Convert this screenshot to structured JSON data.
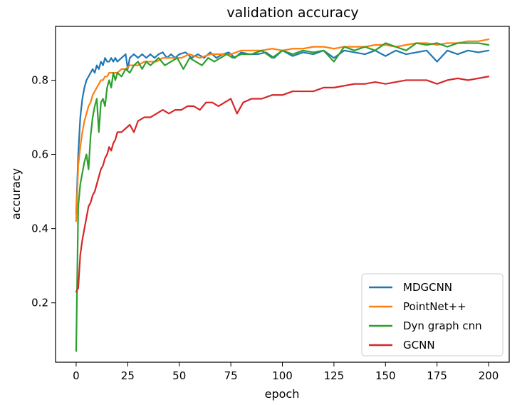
{
  "chart_data": {
    "type": "line",
    "title": "validation accuracy",
    "xlabel": "epoch",
    "ylabel": "accuracy",
    "xlim": [
      -10,
      210
    ],
    "ylim": [
      0.04,
      0.945
    ],
    "xticks": [
      "0",
      "25",
      "50",
      "75",
      "100",
      "125",
      "150",
      "175",
      "200"
    ],
    "yticks": [
      "0.2",
      "0.4",
      "0.6",
      "0.8"
    ],
    "grid": false,
    "legend_position": "lower-right",
    "series": [
      {
        "name": "MDGCNN",
        "color": "#1f77b4",
        "x": [
          0,
          1,
          2,
          3,
          4,
          5,
          6,
          7,
          8,
          9,
          10,
          11,
          12,
          13,
          14,
          15,
          16,
          17,
          18,
          19,
          20,
          22,
          24,
          25,
          26,
          28,
          30,
          32,
          34,
          36,
          38,
          40,
          42,
          44,
          46,
          48,
          50,
          53,
          56,
          59,
          62,
          65,
          68,
          71,
          74,
          77,
          80,
          84,
          88,
          92,
          96,
          100,
          105,
          110,
          115,
          120,
          125,
          130,
          135,
          140,
          145,
          150,
          155,
          160,
          165,
          170,
          175,
          180,
          185,
          190,
          195,
          200
        ],
        "values": [
          0.44,
          0.6,
          0.7,
          0.75,
          0.78,
          0.8,
          0.81,
          0.82,
          0.83,
          0.82,
          0.84,
          0.83,
          0.85,
          0.84,
          0.86,
          0.85,
          0.85,
          0.86,
          0.85,
          0.86,
          0.85,
          0.86,
          0.87,
          0.83,
          0.86,
          0.87,
          0.86,
          0.87,
          0.86,
          0.87,
          0.86,
          0.87,
          0.875,
          0.86,
          0.87,
          0.86,
          0.87,
          0.875,
          0.86,
          0.87,
          0.86,
          0.875,
          0.86,
          0.87,
          0.875,
          0.86,
          0.875,
          0.87,
          0.87,
          0.875,
          0.86,
          0.88,
          0.865,
          0.875,
          0.87,
          0.88,
          0.86,
          0.88,
          0.875,
          0.87,
          0.88,
          0.865,
          0.88,
          0.87,
          0.875,
          0.88,
          0.85,
          0.88,
          0.87,
          0.88,
          0.875,
          0.88
        ]
      },
      {
        "name": "PointNet++",
        "color": "#ff7f0e",
        "x": [
          0,
          1,
          2,
          3,
          4,
          5,
          6,
          7,
          8,
          9,
          10,
          11,
          12,
          13,
          14,
          15,
          16,
          18,
          20,
          22,
          24,
          26,
          28,
          30,
          33,
          36,
          39,
          42,
          45,
          48,
          51,
          55,
          60,
          65,
          70,
          75,
          80,
          85,
          90,
          95,
          100,
          105,
          110,
          115,
          120,
          125,
          130,
          135,
          140,
          145,
          150,
          155,
          160,
          165,
          170,
          175,
          180,
          185,
          190,
          195,
          200
        ],
        "values": [
          0.42,
          0.57,
          0.62,
          0.66,
          0.69,
          0.71,
          0.73,
          0.74,
          0.76,
          0.77,
          0.78,
          0.79,
          0.8,
          0.8,
          0.81,
          0.81,
          0.82,
          0.82,
          0.82,
          0.83,
          0.83,
          0.84,
          0.84,
          0.84,
          0.85,
          0.85,
          0.85,
          0.86,
          0.86,
          0.86,
          0.86,
          0.87,
          0.86,
          0.87,
          0.87,
          0.87,
          0.88,
          0.88,
          0.88,
          0.885,
          0.88,
          0.885,
          0.885,
          0.89,
          0.89,
          0.885,
          0.89,
          0.89,
          0.89,
          0.895,
          0.895,
          0.89,
          0.895,
          0.9,
          0.9,
          0.895,
          0.9,
          0.9,
          0.905,
          0.905,
          0.91
        ]
      },
      {
        "name": "Dyn graph cnn",
        "color": "#2ca02c",
        "x": [
          0,
          1,
          2,
          3,
          4,
          5,
          6,
          7,
          8,
          9,
          10,
          11,
          12,
          13,
          14,
          15,
          16,
          17,
          18,
          19,
          20,
          22,
          24,
          26,
          28,
          30,
          32,
          34,
          36,
          38,
          40,
          43,
          46,
          49,
          52,
          55,
          58,
          61,
          64,
          67,
          70,
          73,
          76,
          80,
          85,
          90,
          95,
          100,
          105,
          110,
          115,
          120,
          125,
          130,
          135,
          140,
          145,
          150,
          155,
          160,
          165,
          170,
          175,
          180,
          185,
          190,
          195,
          200
        ],
        "values": [
          0.07,
          0.46,
          0.52,
          0.55,
          0.58,
          0.6,
          0.56,
          0.65,
          0.7,
          0.73,
          0.75,
          0.66,
          0.74,
          0.75,
          0.73,
          0.78,
          0.8,
          0.78,
          0.82,
          0.8,
          0.82,
          0.81,
          0.83,
          0.82,
          0.84,
          0.85,
          0.83,
          0.85,
          0.84,
          0.85,
          0.86,
          0.84,
          0.85,
          0.86,
          0.83,
          0.86,
          0.85,
          0.84,
          0.86,
          0.85,
          0.86,
          0.87,
          0.86,
          0.87,
          0.87,
          0.88,
          0.86,
          0.88,
          0.87,
          0.88,
          0.875,
          0.88,
          0.85,
          0.89,
          0.88,
          0.89,
          0.88,
          0.9,
          0.89,
          0.88,
          0.9,
          0.895,
          0.9,
          0.89,
          0.9,
          0.9,
          0.9,
          0.895
        ]
      },
      {
        "name": "GCNN",
        "color": "#d62728",
        "x": [
          0,
          1,
          2,
          3,
          4,
          5,
          6,
          7,
          8,
          9,
          10,
          11,
          12,
          13,
          14,
          15,
          16,
          17,
          18,
          19,
          20,
          22,
          24,
          26,
          28,
          30,
          33,
          36,
          39,
          42,
          45,
          48,
          51,
          54,
          57,
          60,
          63,
          66,
          69,
          72,
          75,
          78,
          81,
          85,
          90,
          95,
          100,
          105,
          110,
          115,
          120,
          125,
          130,
          135,
          140,
          145,
          150,
          155,
          160,
          165,
          170,
          175,
          180,
          185,
          190,
          195,
          200
        ],
        "values": [
          0.23,
          0.24,
          0.33,
          0.37,
          0.4,
          0.43,
          0.46,
          0.47,
          0.49,
          0.5,
          0.52,
          0.54,
          0.56,
          0.57,
          0.59,
          0.6,
          0.62,
          0.61,
          0.63,
          0.64,
          0.66,
          0.66,
          0.67,
          0.68,
          0.66,
          0.69,
          0.7,
          0.7,
          0.71,
          0.72,
          0.71,
          0.72,
          0.72,
          0.73,
          0.73,
          0.72,
          0.74,
          0.74,
          0.73,
          0.74,
          0.75,
          0.71,
          0.74,
          0.75,
          0.75,
          0.76,
          0.76,
          0.77,
          0.77,
          0.77,
          0.78,
          0.78,
          0.785,
          0.79,
          0.79,
          0.795,
          0.79,
          0.795,
          0.8,
          0.8,
          0.8,
          0.79,
          0.8,
          0.805,
          0.8,
          0.805,
          0.81
        ]
      }
    ]
  }
}
